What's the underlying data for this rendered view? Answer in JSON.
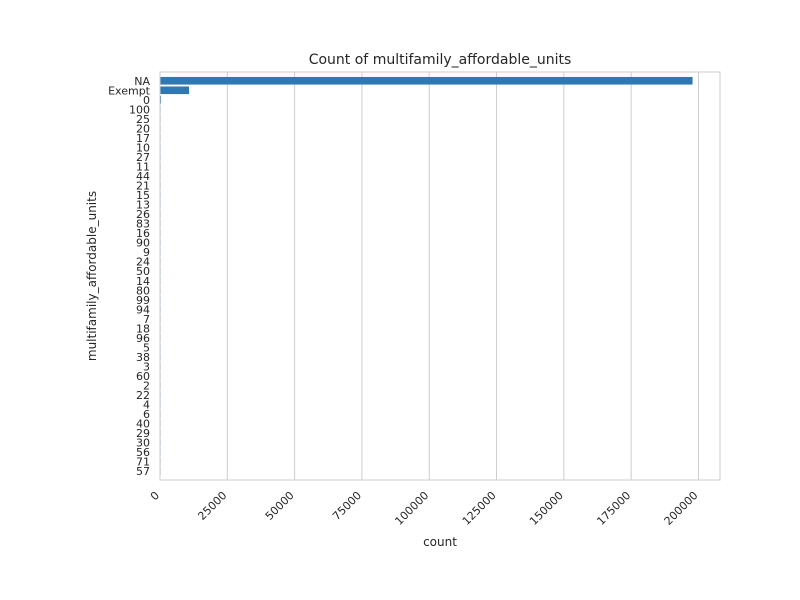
{
  "chart_data": {
    "type": "bar",
    "orientation": "horizontal",
    "title": "Count of multifamily_affordable_units",
    "xlabel": "count",
    "ylabel": "multifamily_affordable_units",
    "xlim": [
      0,
      208000
    ],
    "xticks": [
      0,
      25000,
      50000,
      75000,
      100000,
      125000,
      150000,
      175000,
      200000
    ],
    "grid": "vertical",
    "bar_color": "#2f78b2",
    "categories": [
      "NA",
      "Exempt",
      "0",
      "100",
      "25",
      "20",
      "17",
      "10",
      "27",
      "11",
      "44",
      "21",
      "15",
      "13",
      "26",
      "83",
      "16",
      "90",
      "9",
      "24",
      "50",
      "14",
      "80",
      "99",
      "94",
      "7",
      "18",
      "96",
      "5",
      "38",
      "3",
      "60",
      "2",
      "22",
      "4",
      "6",
      "40",
      "29",
      "30",
      "56",
      "71",
      "57"
    ],
    "values": [
      197800,
      10800,
      400,
      80,
      60,
      50,
      40,
      40,
      30,
      30,
      25,
      25,
      20,
      20,
      20,
      15,
      15,
      15,
      15,
      12,
      12,
      10,
      10,
      10,
      10,
      8,
      8,
      8,
      8,
      6,
      6,
      6,
      5,
      5,
      5,
      5,
      4,
      4,
      4,
      3,
      3,
      3
    ]
  }
}
